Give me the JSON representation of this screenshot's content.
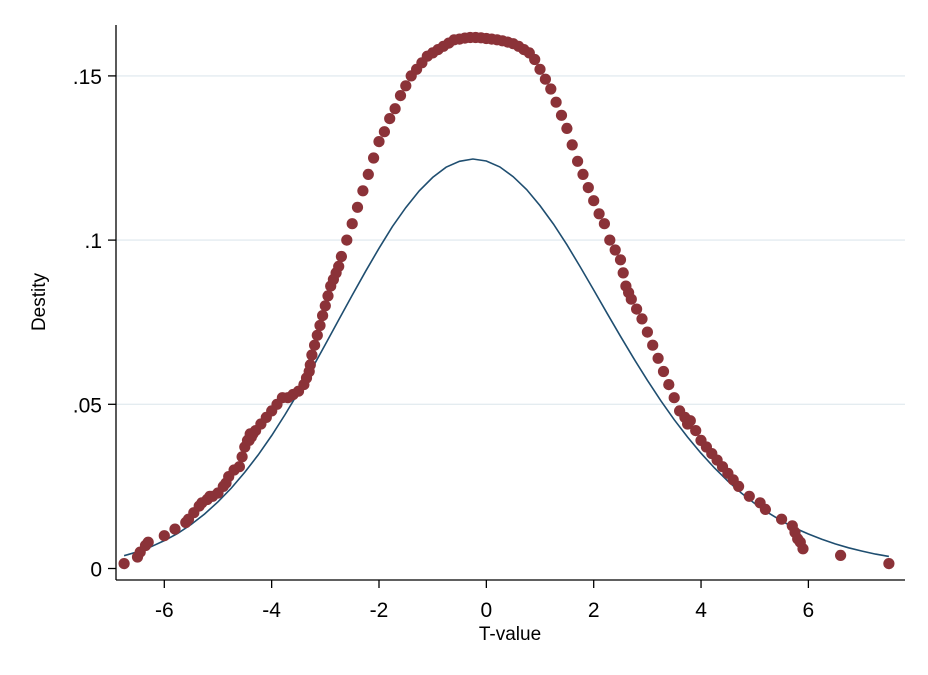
{
  "chart_data": {
    "type": "scatter",
    "title": "",
    "xlabel": "T-value",
    "ylabel": "Destity",
    "xlim": [
      -6.9,
      7.8
    ],
    "ylim": [
      -0.0035,
      0.1655
    ],
    "x_ticks": [
      -6,
      -4,
      -2,
      0,
      2,
      4,
      6
    ],
    "x_tick_labels": [
      "-6",
      "-4",
      "-2",
      "0",
      "2",
      "4",
      "6"
    ],
    "y_ticks": [
      0,
      0.05,
      0.1,
      0.15
    ],
    "y_tick_labels": [
      "0",
      ".05",
      ".1",
      ".15"
    ],
    "grid": "horizontal",
    "legend": "none",
    "colors": {
      "points": "#8b3238",
      "curve": "#1f4e70",
      "grid": "#e4ecf0",
      "axis": "#000000"
    },
    "series": [
      {
        "kind": "points",
        "x": [
          -6.75,
          -6.5,
          -6.45,
          -6.35,
          -6.3,
          -6.0,
          -5.8,
          -5.6,
          -5.55,
          -5.45,
          -5.35,
          -5.3,
          -5.2,
          -5.15,
          -5.1,
          -5.0,
          -4.9,
          -4.85,
          -4.8,
          -4.7,
          -4.6,
          -4.55,
          -4.5,
          -4.45,
          -4.42,
          -4.4,
          -4.38,
          -4.35,
          -4.3,
          -4.2,
          -4.1,
          -4.0,
          -3.9,
          -3.8,
          -3.7,
          -3.6,
          -3.5,
          -3.4,
          -3.35,
          -3.3,
          -3.28,
          -3.25,
          -3.2,
          -3.15,
          -3.1,
          -3.05,
          -3.0,
          -2.95,
          -2.9,
          -2.85,
          -2.8,
          -2.75,
          -2.7,
          -2.6,
          -2.5,
          -2.4,
          -2.3,
          -2.2,
          -2.1,
          -2.0,
          -1.9,
          -1.8,
          -1.7,
          -1.6,
          -1.5,
          -1.4,
          -1.3,
          -1.2,
          -1.1,
          -1.0,
          -0.9,
          -0.8,
          -0.7,
          -0.6,
          -0.5,
          -0.4,
          -0.3,
          -0.2,
          -0.1,
          0.0,
          0.1,
          0.2,
          0.3,
          0.4,
          0.5,
          0.6,
          0.7,
          0.8,
          0.9,
          1.0,
          1.1,
          1.2,
          1.3,
          1.4,
          1.5,
          1.6,
          1.7,
          1.8,
          1.9,
          2.0,
          2.1,
          2.2,
          2.3,
          2.4,
          2.5,
          2.55,
          2.6,
          2.65,
          2.7,
          2.8,
          2.9,
          3.0,
          3.1,
          3.2,
          3.3,
          3.4,
          3.5,
          3.6,
          3.7,
          3.75,
          3.8,
          3.9,
          4.0,
          4.1,
          4.2,
          4.3,
          4.4,
          4.5,
          4.6,
          4.7,
          4.9,
          5.1,
          5.2,
          5.5,
          5.7,
          5.75,
          5.8,
          5.85,
          5.9,
          6.6,
          7.5
        ],
        "y": [
          0.0015,
          0.0035,
          0.005,
          0.007,
          0.008,
          0.01,
          0.012,
          0.014,
          0.015,
          0.017,
          0.019,
          0.02,
          0.021,
          0.022,
          0.022,
          0.023,
          0.025,
          0.026,
          0.028,
          0.03,
          0.031,
          0.034,
          0.037,
          0.039,
          0.039,
          0.041,
          0.04,
          0.041,
          0.042,
          0.044,
          0.046,
          0.048,
          0.05,
          0.052,
          0.052,
          0.053,
          0.054,
          0.056,
          0.058,
          0.06,
          0.062,
          0.065,
          0.068,
          0.071,
          0.074,
          0.077,
          0.08,
          0.083,
          0.086,
          0.088,
          0.09,
          0.092,
          0.095,
          0.1,
          0.105,
          0.11,
          0.115,
          0.12,
          0.125,
          0.13,
          0.133,
          0.137,
          0.14,
          0.144,
          0.147,
          0.15,
          0.152,
          0.154,
          0.156,
          0.157,
          0.158,
          0.159,
          0.16,
          0.161,
          0.1612,
          0.1615,
          0.1617,
          0.1617,
          0.1616,
          0.1614,
          0.1612,
          0.161,
          0.1607,
          0.1603,
          0.1598,
          0.159,
          0.158,
          0.157,
          0.155,
          0.152,
          0.149,
          0.146,
          0.142,
          0.138,
          0.134,
          0.129,
          0.124,
          0.12,
          0.116,
          0.112,
          0.108,
          0.105,
          0.1,
          0.097,
          0.094,
          0.09,
          0.086,
          0.084,
          0.082,
          0.079,
          0.076,
          0.072,
          0.068,
          0.064,
          0.06,
          0.056,
          0.052,
          0.048,
          0.046,
          0.044,
          0.045,
          0.042,
          0.039,
          0.037,
          0.035,
          0.033,
          0.031,
          0.029,
          0.027,
          0.025,
          0.022,
          0.02,
          0.018,
          0.015,
          0.013,
          0.011,
          0.009,
          0.008,
          0.006,
          0.004,
          0.0015
        ]
      },
      {
        "kind": "curve",
        "x": [
          -6.75,
          -6.5,
          -6.25,
          -6.0,
          -5.75,
          -5.5,
          -5.25,
          -5.0,
          -4.75,
          -4.5,
          -4.25,
          -4.0,
          -3.75,
          -3.5,
          -3.25,
          -3.0,
          -2.75,
          -2.5,
          -2.25,
          -2.0,
          -1.75,
          -1.5,
          -1.25,
          -1.0,
          -0.75,
          -0.5,
          -0.25,
          0.0,
          0.25,
          0.5,
          0.75,
          1.0,
          1.25,
          1.5,
          1.75,
          2.0,
          2.25,
          2.5,
          2.75,
          3.0,
          3.25,
          3.5,
          3.75,
          4.0,
          4.25,
          4.5,
          4.75,
          5.0,
          5.25,
          5.5,
          5.75,
          6.0,
          6.25,
          6.5,
          6.75,
          7.0,
          7.25,
          7.5
        ],
        "y": [
          0.0039,
          0.0051,
          0.0066,
          0.0085,
          0.0107,
          0.0134,
          0.0166,
          0.0203,
          0.0245,
          0.0293,
          0.0346,
          0.0405,
          0.0469,
          0.0537,
          0.0608,
          0.0682,
          0.0757,
          0.0832,
          0.0905,
          0.0975,
          0.1041,
          0.1099,
          0.115,
          0.1191,
          0.1222,
          0.124,
          0.1247,
          0.1241,
          0.1223,
          0.1193,
          0.1154,
          0.1105,
          0.1049,
          0.0986,
          0.0918,
          0.0848,
          0.0777,
          0.0707,
          0.0639,
          0.0573,
          0.0511,
          0.0453,
          0.04,
          0.0351,
          0.0306,
          0.0266,
          0.023,
          0.0198,
          0.017,
          0.0145,
          0.0123,
          0.0105,
          0.0089,
          0.0075,
          0.0063,
          0.0053,
          0.0044,
          0.0037
        ]
      }
    ]
  }
}
